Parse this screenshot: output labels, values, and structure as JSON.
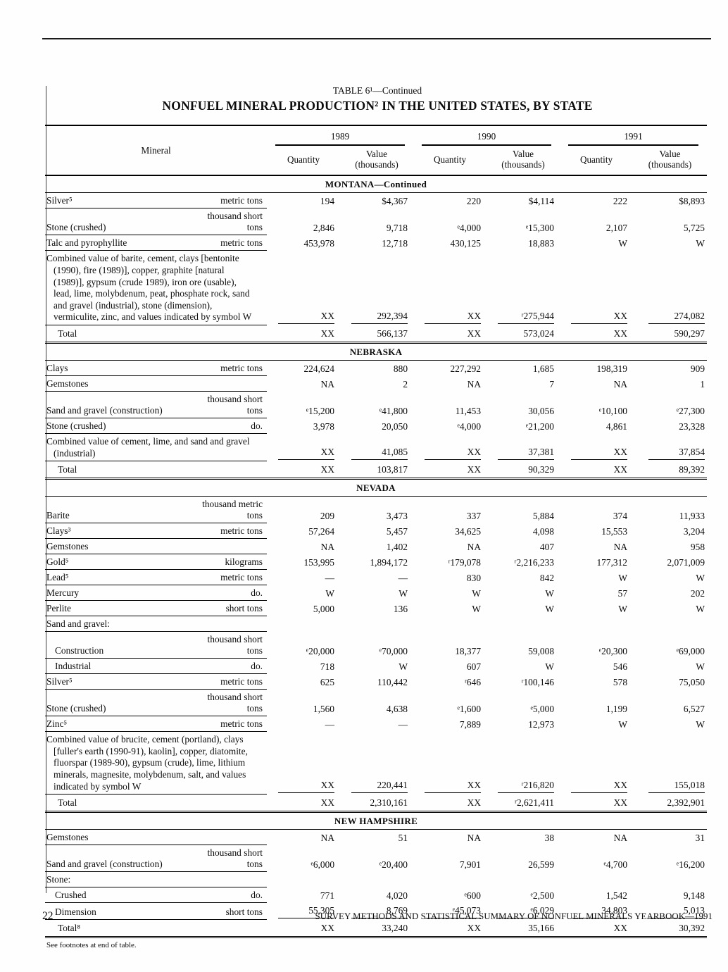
{
  "page": {
    "table_label": "TABLE 6¹—Continued",
    "title": "NONFUEL MINERAL PRODUCTION² IN THE UNITED STATES, BY STATE",
    "footnote": "See footnotes at end of table.",
    "page_number": "22",
    "footer": "SURVEY METHODS AND STATISTICAL SUMMARY OF NONFUEL MINERALS YEARBOOK—1991"
  },
  "header": {
    "mineral": "Mineral",
    "years": [
      "1989",
      "1990",
      "1991"
    ],
    "quantity": "Quantity",
    "value": "Value",
    "value_sub": "(thousands)"
  },
  "sections": [
    {
      "name": "MONTANA—Continued",
      "rows": [
        {
          "label": "Silver⁵",
          "unit": "metric tons",
          "style": "data",
          "values": [
            "194",
            "$4,367",
            "220",
            "$4,114",
            "222",
            "$8,893"
          ]
        },
        {
          "label": "Stone (crushed)",
          "unit": "thousand short tons",
          "style": "data",
          "values": [
            "2,846",
            "9,718",
            "ᵉ4,000",
            "ᵉ15,300",
            "2,107",
            "5,725"
          ]
        },
        {
          "label": "Talc and pyrophyllite",
          "unit": "metric tons",
          "style": "data",
          "values": [
            "453,978",
            "12,718",
            "430,125",
            "18,883",
            "W",
            "W"
          ]
        },
        {
          "label": "Combined value of barite, cement, clays [bentonite\n(1990), fire (1989)], copper, graphite [natural\n(1989)], gypsum (crude 1989), iron ore (usable),\nlead, lime, molybdenum, peat, phosphate rock, sand\nand gravel (industrial), stone (dimension),\nvermiculite, zinc, and values indicated by symbol W",
          "unit": "",
          "style": "combined",
          "sumline": true,
          "values": [
            "XX",
            "292,394",
            "XX",
            "ʳ275,944",
            "XX",
            "274,082"
          ]
        },
        {
          "label": "Total",
          "unit": "",
          "style": "total",
          "values": [
            "XX",
            "566,137",
            "XX",
            "573,024",
            "XX",
            "590,297"
          ]
        }
      ]
    },
    {
      "name": "NEBRASKA",
      "rows": [
        {
          "label": "Clays",
          "unit": "metric tons",
          "style": "data",
          "values": [
            "224,624",
            "880",
            "227,292",
            "1,685",
            "198,319",
            "909"
          ]
        },
        {
          "label": "Gemstones",
          "unit": "",
          "style": "data",
          "values": [
            "NA",
            "2",
            "NA",
            "7",
            "NA",
            "1"
          ]
        },
        {
          "label": "Sand and gravel (construction)",
          "unit": "thousand short tons",
          "style": "data",
          "values": [
            "ᵉ15,200",
            "ᵉ41,800",
            "11,453",
            "30,056",
            "ᵉ10,100",
            "ᵉ27,300"
          ]
        },
        {
          "label": "Stone (crushed)",
          "unit": "do.",
          "style": "data",
          "values": [
            "3,978",
            "20,050",
            "ᵉ4,000",
            "ᵉ21,200",
            "4,861",
            "23,328"
          ]
        },
        {
          "label": "Combined value of cement, lime, and sand and gravel\n(industrial)",
          "unit": "",
          "style": "combined",
          "sumline": true,
          "values": [
            "XX",
            "41,085",
            "XX",
            "37,381",
            "XX",
            "37,854"
          ]
        },
        {
          "label": "Total",
          "unit": "",
          "style": "total",
          "values": [
            "XX",
            "103,817",
            "XX",
            "90,329",
            "XX",
            "89,392"
          ]
        }
      ]
    },
    {
      "name": "NEVADA",
      "rows": [
        {
          "label": "Barite",
          "unit": "thousand metric tons",
          "style": "data",
          "values": [
            "209",
            "3,473",
            "337",
            "5,884",
            "374",
            "11,933"
          ]
        },
        {
          "label": "Clays³",
          "unit": "metric tons",
          "style": "data",
          "values": [
            "57,264",
            "5,457",
            "34,625",
            "4,098",
            "15,553",
            "3,204"
          ]
        },
        {
          "label": "Gemstones",
          "unit": "",
          "style": "data",
          "values": [
            "NA",
            "1,402",
            "NA",
            "407",
            "NA",
            "958"
          ]
        },
        {
          "label": "Gold⁵",
          "unit": "kilograms",
          "style": "data",
          "values": [
            "153,995",
            "1,894,172",
            "ʳ179,078",
            "ʳ2,216,233",
            "177,312",
            "2,071,009"
          ]
        },
        {
          "label": "Lead⁵",
          "unit": "metric tons",
          "style": "data",
          "values": [
            "—",
            "—",
            "830",
            "842",
            "W",
            "W"
          ]
        },
        {
          "label": "Mercury",
          "unit": "do.",
          "style": "data",
          "values": [
            "W",
            "W",
            "W",
            "W",
            "57",
            "202"
          ]
        },
        {
          "label": "Perlite",
          "unit": "short tons",
          "style": "data",
          "values": [
            "5,000",
            "136",
            "W",
            "W",
            "W",
            "W"
          ]
        },
        {
          "label": "Sand and gravel:",
          "unit": "",
          "style": "group",
          "values": [
            "",
            "",
            "",
            "",
            "",
            ""
          ]
        },
        {
          "label": "Construction",
          "unit": "thousand short tons",
          "style": "data",
          "indent": true,
          "values": [
            "ᵉ20,000",
            "ᵉ70,000",
            "18,377",
            "59,008",
            "ᵉ20,300",
            "ᵉ69,000"
          ]
        },
        {
          "label": "Industrial",
          "unit": "do.",
          "style": "data",
          "indent": true,
          "values": [
            "718",
            "W",
            "607",
            "W",
            "546",
            "W"
          ]
        },
        {
          "label": "Silver⁵",
          "unit": "metric tons",
          "style": "data",
          "values": [
            "625",
            "110,442",
            "ʳ646",
            "ʳ100,146",
            "578",
            "75,050"
          ]
        },
        {
          "label": "Stone (crushed)",
          "unit": "thousand short tons",
          "style": "data",
          "values": [
            "1,560",
            "4,638",
            "ᵉ1,600",
            "ᵉ5,000",
            "1,199",
            "6,527"
          ]
        },
        {
          "label": "Zinc⁵",
          "unit": "metric tons",
          "style": "data",
          "values": [
            "—",
            "—",
            "7,889",
            "12,973",
            "W",
            "W"
          ]
        },
        {
          "label": "Combined value of brucite, cement (portland), clays\n[fuller's earth (1990-91), kaolin], copper, diatomite,\nfluorspar (1989-90), gypsum (crude), lime, lithium\nminerals, magnesite, molybdenum, salt, and values\nindicated by symbol W",
          "unit": "",
          "style": "combined",
          "sumline": true,
          "values": [
            "XX",
            "220,441",
            "XX",
            "ʳ216,820",
            "XX",
            "155,018"
          ]
        },
        {
          "label": "Total",
          "unit": "",
          "style": "total",
          "values": [
            "XX",
            "2,310,161",
            "XX",
            "ʳ2,621,411",
            "XX",
            "2,392,901"
          ]
        }
      ]
    },
    {
      "name": "NEW HAMPSHIRE",
      "rows": [
        {
          "label": "Gemstones",
          "unit": "",
          "style": "data",
          "values": [
            "NA",
            "51",
            "NA",
            "38",
            "NA",
            "31"
          ]
        },
        {
          "label": "Sand and gravel (construction)",
          "unit": "thousand short tons",
          "style": "data",
          "values": [
            "ᵉ6,000",
            "ᵉ20,400",
            "7,901",
            "26,599",
            "ᵉ4,700",
            "ᵉ16,200"
          ]
        },
        {
          "label": "Stone:",
          "unit": "",
          "style": "group",
          "values": [
            "",
            "",
            "",
            "",
            "",
            ""
          ]
        },
        {
          "label": "Crushed",
          "unit": "do.",
          "style": "data",
          "indent": true,
          "values": [
            "771",
            "4,020",
            "ᵉ600",
            "ᵉ2,500",
            "1,542",
            "9,148"
          ]
        },
        {
          "label": "Dimension",
          "unit": "short tons",
          "style": "data",
          "indent": true,
          "sumline": true,
          "values": [
            "55,305",
            "8,769",
            "ᵉ45,073",
            "ᵉ6,029",
            "34,803",
            "5,013"
          ]
        },
        {
          "label": "Total⁸",
          "unit": "",
          "style": "total",
          "values": [
            "XX",
            "33,240",
            "XX",
            "35,166",
            "XX",
            "30,392"
          ]
        }
      ]
    }
  ]
}
